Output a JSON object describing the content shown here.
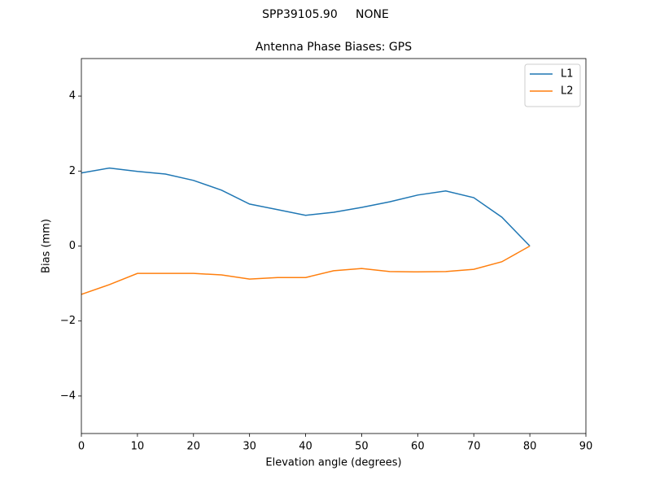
{
  "chart_data": {
    "type": "line",
    "suptitle": "SPP39105.90     NONE",
    "title": "Antenna Phase Biases: GPS",
    "xlabel": "Elevation angle (degrees)",
    "ylabel": "Bias (mm)",
    "x": [
      0,
      5,
      10,
      15,
      20,
      25,
      30,
      35,
      40,
      45,
      50,
      55,
      60,
      65,
      70,
      75,
      80
    ],
    "series": [
      {
        "name": "L1",
        "color": "#1f77b4",
        "values": [
          1.95,
          2.08,
          1.99,
          1.92,
          1.75,
          1.49,
          1.12,
          0.97,
          0.82,
          0.9,
          1.03,
          1.18,
          1.36,
          1.47,
          1.29,
          0.77,
          0.0
        ]
      },
      {
        "name": "L2",
        "color": "#ff7f0e",
        "values": [
          -1.29,
          -1.03,
          -0.73,
          -0.73,
          -0.73,
          -0.77,
          -0.88,
          -0.84,
          -0.84,
          -0.66,
          -0.6,
          -0.68,
          -0.69,
          -0.68,
          -0.62,
          -0.42,
          0.0
        ]
      }
    ],
    "xlim": [
      0,
      90
    ],
    "xticks": [
      0,
      10,
      20,
      30,
      40,
      50,
      60,
      70,
      80,
      90
    ],
    "ylim": [
      -5,
      5
    ],
    "yticks": [
      {
        "value": -4,
        "label": "−4"
      },
      {
        "value": -2,
        "label": "−2"
      },
      0,
      2,
      4
    ],
    "grid": false,
    "legend": "upper-right"
  }
}
